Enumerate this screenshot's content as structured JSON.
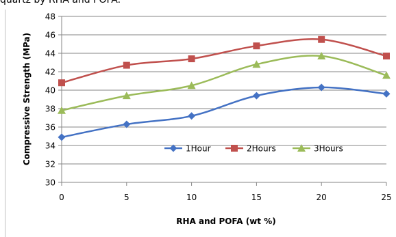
{
  "caption": "quartz by RHA and POFA.",
  "chart_data": {
    "type": "line",
    "title": "",
    "xlabel": "RHA and POFA (wt %)",
    "ylabel": "Compressive Strength (MPa)",
    "x": [
      0,
      5,
      10,
      15,
      20,
      25
    ],
    "xlim": [
      0,
      25
    ],
    "ylim": [
      30,
      48
    ],
    "xticks": [
      0,
      5,
      10,
      15,
      20,
      25
    ],
    "yticks": [
      30,
      32,
      34,
      36,
      38,
      40,
      42,
      44,
      46,
      48
    ],
    "grid": "horizontal major",
    "legend_position": "inside-center-right",
    "series": [
      {
        "name": "1Hour",
        "values": [
          34.9,
          36.3,
          37.2,
          39.4,
          40.3,
          39.6
        ],
        "color": "#4472C4",
        "marker": "diamond"
      },
      {
        "name": "2Hours",
        "values": [
          40.8,
          42.7,
          43.4,
          44.8,
          45.5,
          43.7
        ],
        "color": "#C0504D",
        "marker": "square"
      },
      {
        "name": "3Hours",
        "values": [
          37.8,
          39.4,
          40.5,
          42.8,
          43.7,
          41.6
        ],
        "color": "#9BBB59",
        "marker": "triangle"
      }
    ]
  }
}
